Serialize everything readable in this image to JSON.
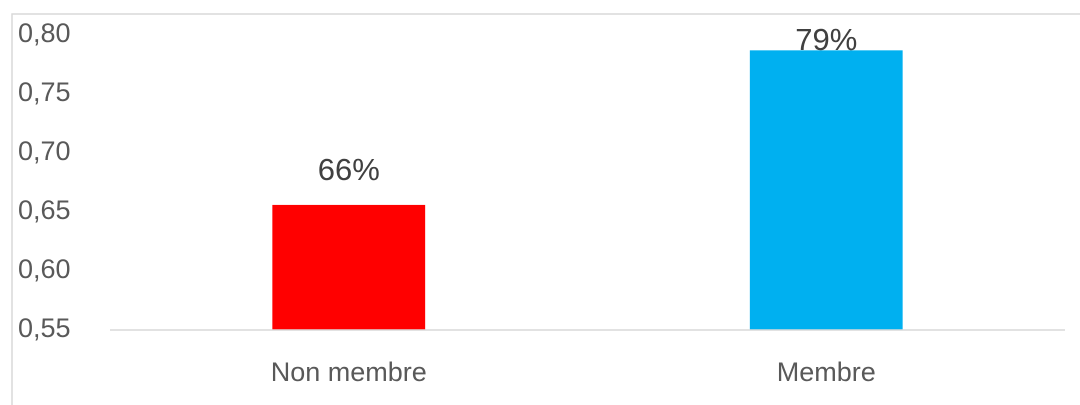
{
  "chart_data": {
    "type": "bar",
    "categories": [
      "Non membre",
      "Membre"
    ],
    "values": [
      0.656,
      0.787
    ],
    "value_labels": [
      "66%",
      "79%"
    ],
    "colors": [
      "#ff0000",
      "#00b0f0"
    ],
    "ylim": [
      0.55,
      0.8
    ],
    "yticks": [
      {
        "value": 0.55,
        "label": "0,55"
      },
      {
        "value": 0.6,
        "label": "0,60"
      },
      {
        "value": 0.65,
        "label": "0,65"
      },
      {
        "value": 0.7,
        "label": "0,70"
      },
      {
        "value": 0.75,
        "label": "0,75"
      },
      {
        "value": 0.8,
        "label": "0,80"
      }
    ],
    "grid": false
  }
}
